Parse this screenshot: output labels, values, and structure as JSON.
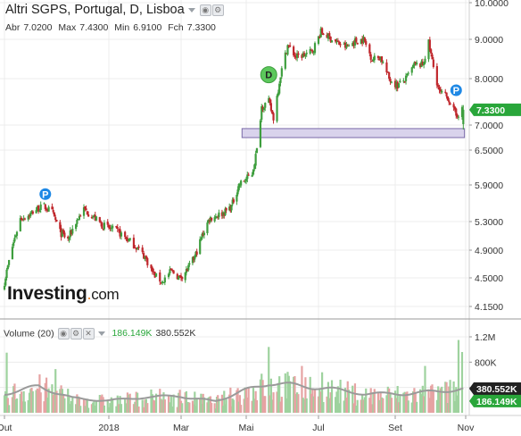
{
  "header": {
    "title": "Altri SGPS, Portugal, D, Lisboa",
    "open_label": "Abr",
    "open": "7.0200",
    "high_label": "Max",
    "high": "7.4300",
    "low_label": "Min",
    "low": "6.9100",
    "close_label": "Fch",
    "close": "7.3300"
  },
  "volume_header": {
    "label": "Volume (20)",
    "value": "186.149K",
    "ma_value": "380.552K"
  },
  "logo": {
    "main": "Investing",
    "dot": ".",
    "suffix": "com"
  },
  "colors": {
    "up": "#3e9e3e",
    "down": "#c0282d",
    "volume_up": "#9ed29e",
    "volume_down": "#e6a3a3",
    "ma": "#9a9a9a",
    "zone_fill": "#d9d3ec",
    "zone_stroke": "#7a6aa8",
    "price_badge": "#29a63a",
    "ma_badge": "#222222",
    "grid": "#ececec"
  },
  "chart_data": {
    "type": "candlestick",
    "price_axis": {
      "ticks": [
        "10.0000",
        "9.0000",
        "8.0000",
        "7.0000",
        "6.5000",
        "5.9000",
        "5.3000",
        "4.9000",
        "4.5000",
        "4.1500"
      ],
      "tick_values": [
        10.0,
        9.0,
        8.0,
        7.0,
        6.5,
        5.9,
        5.3,
        4.9,
        4.5,
        4.15
      ],
      "current_price_label": "7.3300",
      "current_price": 7.33
    },
    "volume_axis": {
      "ticks": [
        "1.2M",
        "800K",
        "400K"
      ],
      "tick_values": [
        1200000,
        800000,
        400000
      ],
      "ma_label": "380.552K",
      "ma": 380552,
      "last_label": "186.149K",
      "last": 186149
    },
    "x_axis": {
      "labels": [
        "Out",
        "2018",
        "Mar",
        "Mai",
        "Jul",
        "Set",
        "Nov"
      ],
      "label_dates": [
        "2017-10-02",
        "2018-01-02",
        "2018-03-01",
        "2018-05-02",
        "2018-07-02",
        "2018-09-03",
        "2018-11-01"
      ]
    },
    "support_zone": {
      "low": 6.75,
      "high": 6.93
    },
    "markers": [
      {
        "label": "P",
        "date": "2017-11-07",
        "price": 5.75,
        "color": "#1e88e5"
      },
      {
        "label": "D",
        "date": "2018-05-21",
        "price": 8.1,
        "color": "#5cc85c"
      },
      {
        "label": "P",
        "date": "2018-10-24",
        "price": 7.75,
        "color": "#1e88e5"
      }
    ],
    "price_path": [
      [
        "2017-10-02",
        4.45
      ],
      [
        "2017-10-09",
        4.95
      ],
      [
        "2017-10-16",
        5.35
      ],
      [
        "2017-10-23",
        5.4
      ],
      [
        "2017-10-30",
        5.5
      ],
      [
        "2017-11-06",
        5.55
      ],
      [
        "2017-11-13",
        5.45
      ],
      [
        "2017-11-20",
        5.15
      ],
      [
        "2017-11-27",
        5.05
      ],
      [
        "2017-12-04",
        5.3
      ],
      [
        "2017-12-11",
        5.5
      ],
      [
        "2017-12-18",
        5.4
      ],
      [
        "2017-12-27",
        5.25
      ],
      [
        "2018-01-03",
        5.2
      ],
      [
        "2018-01-10",
        5.15
      ],
      [
        "2018-01-17",
        5.05
      ],
      [
        "2018-01-24",
        4.95
      ],
      [
        "2018-01-31",
        4.8
      ],
      [
        "2018-02-07",
        4.55
      ],
      [
        "2018-02-14",
        4.45
      ],
      [
        "2018-02-21",
        4.6
      ],
      [
        "2018-02-28",
        4.5
      ],
      [
        "2018-03-07",
        4.62
      ],
      [
        "2018-03-14",
        4.8
      ],
      [
        "2018-03-21",
        5.1
      ],
      [
        "2018-03-28",
        5.35
      ],
      [
        "2018-04-04",
        5.4
      ],
      [
        "2018-04-11",
        5.45
      ],
      [
        "2018-04-18",
        5.55
      ],
      [
        "2018-04-25",
        5.9
      ],
      [
        "2018-05-02",
        6.0
      ],
      [
        "2018-05-07",
        6.1
      ],
      [
        "2018-05-11",
        6.5
      ],
      [
        "2018-05-15",
        7.4
      ],
      [
        "2018-05-21",
        7.5
      ],
      [
        "2018-05-25",
        7.15
      ],
      [
        "2018-05-31",
        8.1
      ],
      [
        "2018-06-06",
        8.85
      ],
      [
        "2018-06-13",
        8.55
      ],
      [
        "2018-06-20",
        8.6
      ],
      [
        "2018-06-27",
        8.7
      ],
      [
        "2018-07-04",
        9.2
      ],
      [
        "2018-07-11",
        9.05
      ],
      [
        "2018-07-18",
        8.9
      ],
      [
        "2018-07-25",
        8.8
      ],
      [
        "2018-08-01",
        8.95
      ],
      [
        "2018-08-08",
        9.0
      ],
      [
        "2018-08-15",
        8.5
      ],
      [
        "2018-08-22",
        8.55
      ],
      [
        "2018-08-29",
        8.0
      ],
      [
        "2018-09-05",
        7.85
      ],
      [
        "2018-09-12",
        8.0
      ],
      [
        "2018-09-19",
        8.35
      ],
      [
        "2018-09-26",
        8.35
      ],
      [
        "2018-10-01",
        8.9
      ],
      [
        "2018-10-05",
        8.3
      ],
      [
        "2018-10-10",
        7.7
      ],
      [
        "2018-10-17",
        7.6
      ],
      [
        "2018-10-24",
        7.2
      ],
      [
        "2018-10-29",
        7.33
      ]
    ],
    "volume_path": [
      [
        "2017-10-02",
        300000
      ],
      [
        "2017-11-01",
        420000
      ],
      [
        "2017-12-01",
        230000
      ],
      [
        "2018-01-02",
        190000
      ],
      [
        "2018-02-01",
        250000
      ],
      [
        "2018-03-01",
        260000
      ],
      [
        "2018-04-02",
        180000
      ],
      [
        "2018-05-02",
        360000
      ],
      [
        "2018-05-21",
        470000
      ],
      [
        "2018-06-15",
        430000
      ],
      [
        "2018-07-10",
        380000
      ],
      [
        "2018-08-10",
        300000
      ],
      [
        "2018-09-10",
        300000
      ],
      [
        "2018-10-10",
        340000
      ],
      [
        "2018-10-31",
        380552
      ]
    ],
    "volume_spikes": [
      [
        "2017-10-04",
        950000
      ],
      [
        "2017-11-16",
        690000
      ],
      [
        "2018-05-21",
        1040000
      ],
      [
        "2018-06-18",
        740000
      ],
      [
        "2018-07-05",
        640000
      ],
      [
        "2018-09-28",
        740000
      ],
      [
        "2018-10-26",
        1150000
      ],
      [
        "2018-10-29",
        960000
      ]
    ]
  }
}
